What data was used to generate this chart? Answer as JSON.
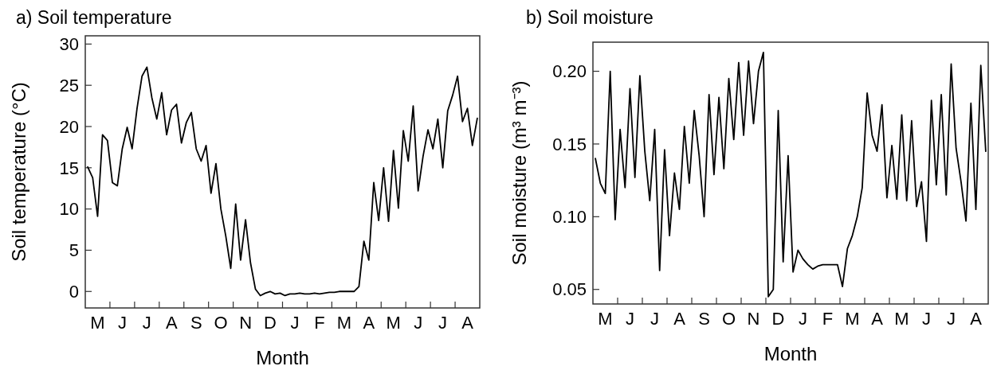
{
  "chart_data": [
    {
      "type": "line",
      "title": "a) Soil temperature",
      "xlabel": "Month",
      "ylabel": "Soil temperature (°C)",
      "ylim": [
        -2,
        31
      ],
      "yticks": [
        0,
        5,
        10,
        15,
        20,
        25,
        30
      ],
      "categories": [
        null,
        null,
        "M",
        null,
        null,
        null,
        null,
        "J",
        null,
        null,
        null,
        null,
        "J",
        null,
        null,
        null,
        null,
        "A",
        null,
        null,
        null,
        null,
        "S",
        null,
        null,
        null,
        null,
        "O",
        null,
        null,
        null,
        null,
        "N",
        null,
        null,
        null,
        null,
        "D",
        null,
        null,
        null,
        null,
        "J",
        null,
        null,
        null,
        null,
        "F",
        null,
        null,
        null,
        null,
        "M",
        null,
        null,
        null,
        null,
        "A",
        null,
        null,
        null,
        null,
        "M",
        null,
        null,
        null,
        null,
        "J",
        null,
        null,
        null,
        null,
        "J",
        null,
        null,
        null,
        null,
        "A",
        null,
        null
      ],
      "series": [
        {
          "color": "#000000",
          "values": [
            15.1,
            13.8,
            9.1,
            19,
            18.3,
            13.2,
            12.8,
            17.3,
            19.9,
            17.3,
            22.2,
            26.1,
            27.2,
            23.5,
            20.9,
            24.1,
            19,
            22,
            22.7,
            18,
            20.5,
            21.7,
            17.3,
            15.8,
            17.7,
            11.9,
            15.5,
            10,
            6.7,
            2.8,
            10.6,
            3.8,
            8.7,
            3.5,
            0.3,
            -0.5,
            -0.2,
            0,
            -0.3,
            -0.2,
            -0.5,
            -0.3,
            -0.3,
            -0.2,
            -0.3,
            -0.3,
            -0.2,
            -0.3,
            -0.2,
            -0.1,
            -0.1,
            0,
            0,
            0,
            0,
            0.6,
            6.1,
            3.8,
            13.2,
            8.6,
            15,
            8.5,
            17.1,
            10.1,
            19.5,
            15.8,
            22.5,
            12.2,
            16.4,
            19.6,
            17.3,
            20.9,
            15,
            21.9,
            23.8,
            26.1,
            20.6,
            22.2,
            17.7,
            21
          ]
        }
      ]
    },
    {
      "type": "line",
      "title": "b) Soil moisture",
      "xlabel": "Month",
      "ylabel": "Soil moisture (m³ m⁻³)",
      "ylim": [
        0.04,
        0.22
      ],
      "yticks": [
        0.05,
        {
          "value": 0.1,
          "label": "0.10"
        },
        0.15,
        {
          "value": 0.2,
          "label": "0.20"
        }
      ],
      "categories": [
        null,
        null,
        "M",
        null,
        null,
        null,
        null,
        "J",
        null,
        null,
        null,
        null,
        "J",
        null,
        null,
        null,
        null,
        "A",
        null,
        null,
        null,
        null,
        "S",
        null,
        null,
        null,
        null,
        "O",
        null,
        null,
        null,
        null,
        "N",
        null,
        null,
        null,
        null,
        "D",
        null,
        null,
        null,
        null,
        "J",
        null,
        null,
        null,
        null,
        "F",
        null,
        null,
        null,
        null,
        "M",
        null,
        null,
        null,
        null,
        "A",
        null,
        null,
        null,
        null,
        "M",
        null,
        null,
        null,
        null,
        "J",
        null,
        null,
        null,
        null,
        "J",
        null,
        null,
        null,
        null,
        "A",
        null,
        null
      ],
      "series": [
        {
          "color": "#000000",
          "values": [
            0.14,
            0.123,
            0.116,
            0.2,
            0.098,
            0.16,
            0.12,
            0.188,
            0.127,
            0.197,
            0.145,
            0.111,
            0.16,
            0.063,
            0.146,
            0.087,
            0.13,
            0.105,
            0.162,
            0.123,
            0.173,
            0.142,
            0.1,
            0.184,
            0.129,
            0.182,
            0.133,
            0.195,
            0.153,
            0.206,
            0.156,
            0.207,
            0.164,
            0.2,
            0.213,
            0.045,
            0.05,
            0.173,
            0.069,
            0.142,
            0.062,
            0.077,
            0.071,
            0.067,
            0.064,
            0.066,
            0.067,
            0.067,
            0.067,
            0.067,
            0.052,
            0.078,
            0.087,
            0.1,
            0.12,
            0.185,
            0.156,
            0.145,
            0.177,
            0.113,
            0.149,
            0.112,
            0.17,
            0.111,
            0.166,
            0.107,
            0.124,
            0.083,
            0.18,
            0.122,
            0.184,
            0.115,
            0.205,
            0.147,
            0.124,
            0.097,
            0.178,
            0.105,
            0.204,
            0.145
          ]
        }
      ]
    }
  ]
}
